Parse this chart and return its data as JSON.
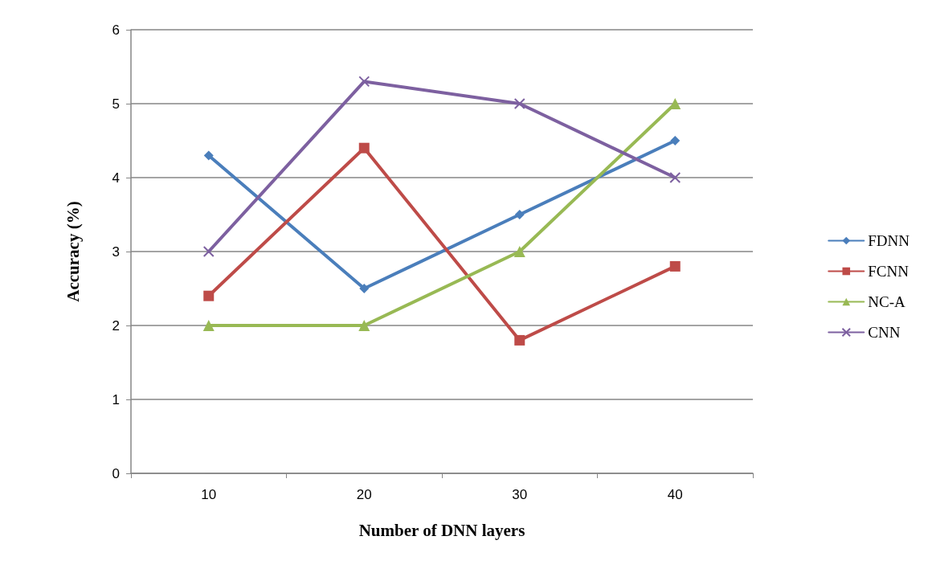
{
  "chart_data": {
    "type": "line",
    "xlabel": "Number of DNN layers",
    "ylabel": "Accuracy (%)",
    "categories": [
      "10",
      "20",
      "30",
      "40"
    ],
    "series": [
      {
        "name": "FDNN",
        "color": "#4a7ebb",
        "marker": "diamond",
        "values": [
          4.3,
          2.5,
          3.5,
          4.5
        ]
      },
      {
        "name": "FCNN",
        "color": "#be4b48",
        "marker": "square",
        "values": [
          2.4,
          4.4,
          1.8,
          2.8
        ]
      },
      {
        "name": "NC-A",
        "color": "#98b954",
        "marker": "triangle",
        "values": [
          2,
          2,
          3,
          5
        ]
      },
      {
        "name": "CNN",
        "color": "#7d60a0",
        "marker": "cross",
        "values": [
          3,
          5.3,
          5,
          4
        ]
      }
    ],
    "ylim": [
      0,
      6
    ],
    "yticks": [
      0,
      1,
      2,
      3,
      4,
      5,
      6
    ],
    "grid": "y",
    "legend": "right",
    "line_style": "solid"
  }
}
